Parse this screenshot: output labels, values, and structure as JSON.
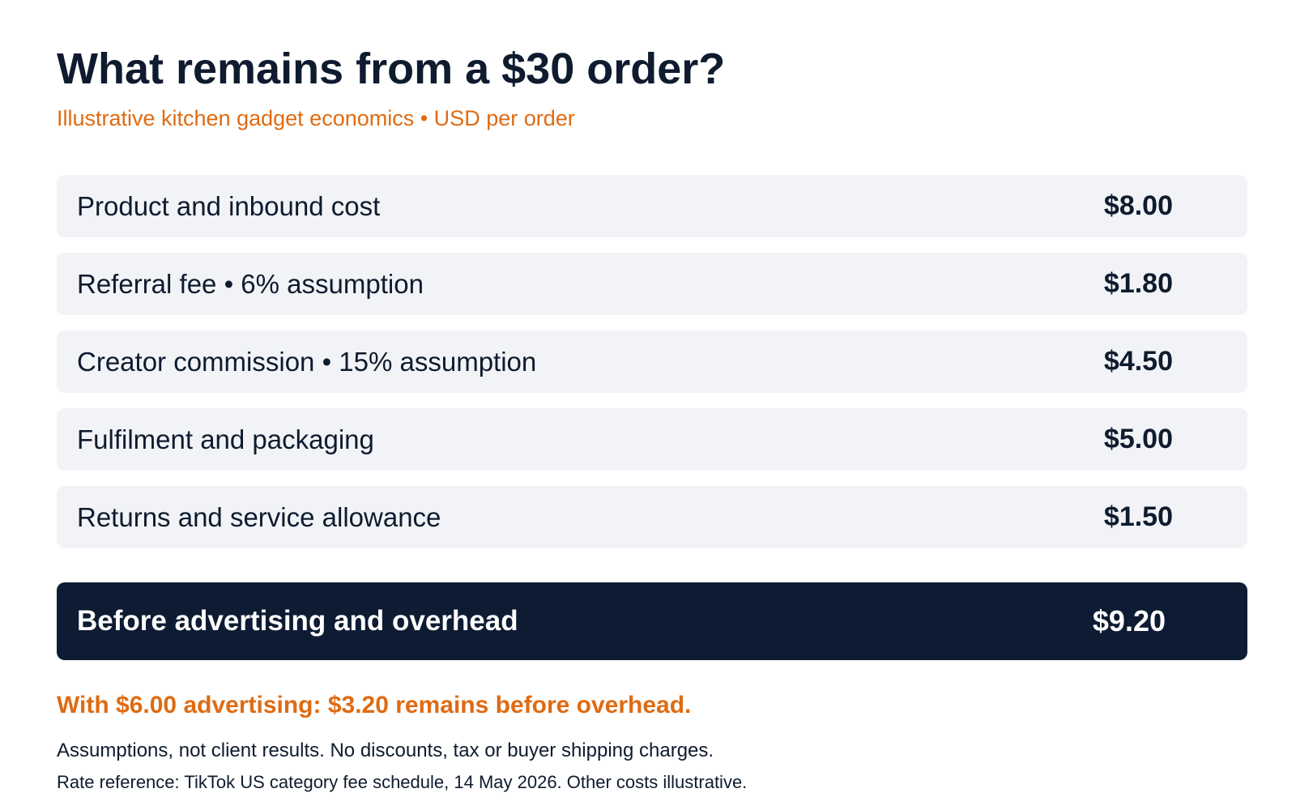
{
  "header": {
    "title": "What remains from a $30 order?",
    "subtitle": "Illustrative kitchen gadget economics • USD per order"
  },
  "rows": [
    {
      "label": "Product and inbound cost",
      "value": "$8.00"
    },
    {
      "label": "Referral fee • 6% assumption",
      "value": "$1.80"
    },
    {
      "label": "Creator commission • 15% assumption",
      "value": "$4.50"
    },
    {
      "label": "Fulfilment and packaging",
      "value": "$5.00"
    },
    {
      "label": "Returns and service allowance",
      "value": "$1.50"
    }
  ],
  "total": {
    "label": "Before advertising and overhead",
    "value": "$9.20"
  },
  "footer": {
    "highlight": "With $6.00 advertising: $3.20 remains before overhead.",
    "note": "Assumptions, not client results. No discounts, tax or buyer shipping charges.",
    "reference": "Rate reference: TikTok US category fee schedule, 14 May 2026. Other costs illustrative."
  },
  "colors": {
    "accent": "#df6b12",
    "dark": "#0e1c33",
    "row_bg": "#f1f3f7",
    "text": "#0f1b2e"
  }
}
